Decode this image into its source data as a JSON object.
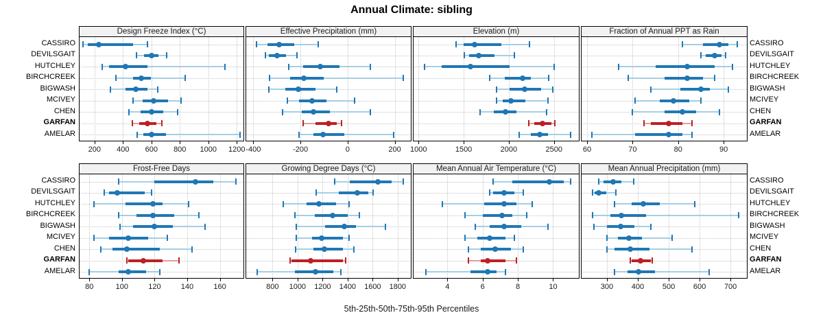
{
  "title": "Annual Climate: sibling",
  "caption": "5th-25th-50th-75th-95th Percentiles",
  "sites": [
    "CASSIRO",
    "DEVILSGAIT",
    "HUTCHLEY",
    "BIRCHCREEK",
    "BIGWASH",
    "MCIVEY",
    "CHEN",
    "GARFAN",
    "AMELAR"
  ],
  "highlight_site": "GARFAN",
  "colors": {
    "blue": "#1f77b4",
    "blue_light": "#a6cee3",
    "red": "#bc2025",
    "red_light": "#dca0a0",
    "grid": "#c4c4c4",
    "strip_bg": "#f2f2f2",
    "border": "#000000"
  },
  "chart_data": [
    {
      "type": "dotplot",
      "title": "Design Freeze Index (°C)",
      "panel_row": "top",
      "percentiles": [
        "5th",
        "25th",
        "50th",
        "75th",
        "95th"
      ],
      "xlim": [
        95,
        1247
      ],
      "xticks": [
        200,
        400,
        600,
        800,
        1000,
        1200
      ],
      "grid": true,
      "series": [
        {
          "name": "CASSIRO",
          "values": [
            120,
            155,
            230,
            470,
            570
          ]
        },
        {
          "name": "DEVILSGAIT",
          "values": [
            495,
            550,
            600,
            650,
            705
          ]
        },
        {
          "name": "HUTCHLEY",
          "values": [
            255,
            300,
            420,
            570,
            1115
          ]
        },
        {
          "name": "BIRCHCREEK",
          "values": [
            350,
            470,
            530,
            595,
            835
          ]
        },
        {
          "name": "BIGWASH",
          "values": [
            310,
            420,
            490,
            570,
            645
          ]
        },
        {
          "name": "MCIVEY",
          "values": [
            470,
            540,
            615,
            715,
            810
          ]
        },
        {
          "name": "CHEN",
          "values": [
            440,
            525,
            600,
            685,
            785
          ]
        },
        {
          "name": "GARFAN",
          "values": [
            465,
            515,
            570,
            635,
            675
          ]
        },
        {
          "name": "AMELAR",
          "values": [
            500,
            545,
            600,
            700,
            1225
          ]
        }
      ]
    },
    {
      "type": "dotplot",
      "title": "Effective Precipitation (mm)",
      "panel_row": "top",
      "percentiles": [
        "5th",
        "25th",
        "50th",
        "75th",
        "95th"
      ],
      "xlim": [
        -430,
        268
      ],
      "xticks": [
        -400,
        -200,
        0,
        200
      ],
      "grid": true,
      "series": [
        {
          "name": "CASSIRO",
          "values": [
            -385,
            -340,
            -290,
            -225,
            -125
          ]
        },
        {
          "name": "DEVILSGAIT",
          "values": [
            -350,
            -335,
            -300,
            -260,
            -215
          ]
        },
        {
          "name": "HUTCHLEY",
          "values": [
            -250,
            -190,
            -115,
            -35,
            95
          ]
        },
        {
          "name": "BIRCHCREEK",
          "values": [
            -330,
            -245,
            -185,
            -100,
            235
          ]
        },
        {
          "name": "BIGWASH",
          "values": [
            -335,
            -265,
            -210,
            -135,
            -45
          ]
        },
        {
          "name": "MCIVEY",
          "values": [
            -255,
            -205,
            -150,
            -90,
            30
          ]
        },
        {
          "name": "CHEN",
          "values": [
            -275,
            -195,
            -145,
            -75,
            95
          ]
        },
        {
          "name": "GARFAN",
          "values": [
            -190,
            -135,
            -80,
            -45,
            -25
          ]
        },
        {
          "name": "AMELAR",
          "values": [
            -205,
            -145,
            -105,
            -15,
            195
          ]
        }
      ]
    },
    {
      "type": "dotplot",
      "title": "Elevation (m)",
      "panel_row": "top",
      "percentiles": [
        "5th",
        "25th",
        "50th",
        "75th",
        "95th"
      ],
      "xlim": [
        945,
        2775
      ],
      "xticks": [
        1000,
        1500,
        2000,
        2500
      ],
      "grid": true,
      "series": [
        {
          "name": "CASSIRO",
          "values": [
            1415,
            1500,
            1620,
            1920,
            2225
          ]
        },
        {
          "name": "DEVILSGAIT",
          "values": [
            1510,
            1560,
            1670,
            1840,
            2065
          ]
        },
        {
          "name": "HUTCHLEY",
          "values": [
            1070,
            1255,
            1575,
            2010,
            2500
          ]
        },
        {
          "name": "BIRCHCREEK",
          "values": [
            1785,
            1955,
            2155,
            2245,
            2440
          ]
        },
        {
          "name": "BIGWASH",
          "values": [
            1865,
            2005,
            2175,
            2360,
            2485
          ]
        },
        {
          "name": "MCIVEY",
          "values": [
            1865,
            1935,
            2025,
            2185,
            2435
          ]
        },
        {
          "name": "CHEN",
          "values": [
            1680,
            1835,
            1960,
            2085,
            2420
          ]
        },
        {
          "name": "GARFAN",
          "values": [
            2220,
            2285,
            2375,
            2475,
            2510
          ]
        },
        {
          "name": "AMELAR",
          "values": [
            2115,
            2245,
            2345,
            2435,
            2685
          ]
        }
      ]
    },
    {
      "type": "dotplot",
      "title": "Fraction of Annual PPT as Rain",
      "panel_row": "top",
      "percentiles": [
        "5th",
        "25th",
        "50th",
        "75th",
        "95th"
      ],
      "xlim": [
        58.8,
        95.1
      ],
      "xticks": [
        60,
        70,
        80,
        90
      ],
      "grid": true,
      "series": [
        {
          "name": "CASSIRO",
          "values": [
            81,
            85.5,
            89,
            91,
            93
          ]
        },
        {
          "name": "DEVILSGAIT",
          "values": [
            85,
            86,
            88,
            89.5,
            90.5
          ]
        },
        {
          "name": "HUTCHLEY",
          "values": [
            67,
            75,
            82,
            88,
            92
          ]
        },
        {
          "name": "BIRCHCREEK",
          "values": [
            69,
            77,
            82,
            85.5,
            88
          ]
        },
        {
          "name": "BIGWASH",
          "values": [
            74,
            80.5,
            85,
            87,
            91
          ]
        },
        {
          "name": "MCIVEY",
          "values": [
            70.5,
            76,
            79,
            82.5,
            85
          ]
        },
        {
          "name": "CHEN",
          "values": [
            70,
            77,
            81,
            84,
            89
          ]
        },
        {
          "name": "GARFAN",
          "values": [
            72.5,
            74,
            78,
            81,
            83
          ]
        },
        {
          "name": "AMELAR",
          "values": [
            61,
            70.5,
            78,
            81,
            83
          ]
        }
      ]
    },
    {
      "type": "dotplot",
      "title": "Frost-Free Days",
      "panel_row": "bottom",
      "percentiles": [
        "5th",
        "25th",
        "50th",
        "75th",
        "95th"
      ],
      "xlim": [
        74,
        174.5
      ],
      "xticks": [
        80,
        100,
        120,
        140,
        160
      ],
      "grid": true,
      "series": [
        {
          "name": "CASSIRO",
          "values": [
            98,
            120,
            145,
            156,
            170
          ]
        },
        {
          "name": "DEVILSGAIT",
          "values": [
            89,
            92,
            97,
            114,
            118
          ]
        },
        {
          "name": "HUTCHLEY",
          "values": [
            83,
            102,
            119,
            125,
            141
          ]
        },
        {
          "name": "BIRCHCREEK",
          "values": [
            98,
            109,
            119,
            132,
            147
          ]
        },
        {
          "name": "BIGWASH",
          "values": [
            99,
            107,
            120,
            131,
            151
          ]
        },
        {
          "name": "MCIVEY",
          "values": [
            83,
            92,
            104,
            116,
            128
          ]
        },
        {
          "name": "CHEN",
          "values": [
            87,
            94,
            103,
            123,
            143
          ]
        },
        {
          "name": "GARFAN",
          "values": [
            103,
            104,
            113,
            125,
            135
          ]
        },
        {
          "name": "AMELAR",
          "values": [
            80,
            98,
            104,
            115,
            123
          ]
        }
      ]
    },
    {
      "type": "dotplot",
      "title": "Growing Degree Days (°C)",
      "panel_row": "bottom",
      "percentiles": [
        "5th",
        "25th",
        "50th",
        "75th",
        "95th"
      ],
      "xlim": [
        590,
        1905
      ],
      "xticks": [
        800,
        1000,
        1200,
        1400,
        1600,
        1800
      ],
      "grid": true,
      "series": [
        {
          "name": "CASSIRO",
          "values": [
            1295,
            1420,
            1640,
            1750,
            1845
          ]
        },
        {
          "name": "DEVILSGAIT",
          "values": [
            1150,
            1330,
            1475,
            1565,
            1605
          ]
        },
        {
          "name": "HUTCHLEY",
          "values": [
            885,
            1070,
            1170,
            1310,
            1410
          ]
        },
        {
          "name": "BIRCHCREEK",
          "values": [
            980,
            1140,
            1280,
            1400,
            1495
          ]
        },
        {
          "name": "BIGWASH",
          "values": [
            990,
            1220,
            1375,
            1465,
            1700
          ]
        },
        {
          "name": "MCIVEY",
          "values": [
            990,
            1115,
            1195,
            1360,
            1410
          ]
        },
        {
          "name": "CHEN",
          "values": [
            985,
            1125,
            1215,
            1365,
            1450
          ]
        },
        {
          "name": "GARFAN",
          "values": [
            940,
            950,
            1105,
            1360,
            1385
          ]
        },
        {
          "name": "AMELAR",
          "values": [
            680,
            980,
            1145,
            1285,
            1345
          ]
        }
      ]
    },
    {
      "type": "dotplot",
      "title": "Mean Annual Air Temperature (°C)",
      "panel_row": "bottom",
      "percentiles": [
        "5th",
        "25th",
        "50th",
        "75th",
        "95th"
      ],
      "xlim": [
        2.08,
        11.46
      ],
      "xticks": [
        4,
        6,
        8,
        10
      ],
      "grid": true,
      "series": [
        {
          "name": "CASSIRO",
          "values": [
            6.6,
            7.7,
            9.8,
            10.6,
            11.0
          ]
        },
        {
          "name": "DEVILSGAIT",
          "values": [
            6.4,
            6.6,
            7.2,
            7.8,
            8.3
          ]
        },
        {
          "name": "HUTCHLEY",
          "values": [
            3.7,
            6.1,
            7.2,
            7.9,
            8.8
          ]
        },
        {
          "name": "BIRCHCREEK",
          "values": [
            5.0,
            6.0,
            7.1,
            7.7,
            8.5
          ]
        },
        {
          "name": "BIGWASH",
          "values": [
            5.6,
            6.4,
            7.2,
            8.2,
            9.7
          ]
        },
        {
          "name": "MCIVEY",
          "values": [
            5.0,
            5.7,
            6.4,
            7.3,
            7.8
          ]
        },
        {
          "name": "CHEN",
          "values": [
            5.2,
            5.9,
            6.7,
            7.6,
            8.3
          ]
        },
        {
          "name": "GARFAN",
          "values": [
            5.2,
            5.9,
            6.3,
            7.3,
            7.9
          ]
        },
        {
          "name": "AMELAR",
          "values": [
            2.8,
            5.3,
            6.3,
            6.8,
            7.3
          ]
        }
      ]
    },
    {
      "type": "dotplot",
      "title": "Mean Annual Precipitation (mm)",
      "panel_row": "bottom",
      "percentiles": [
        "5th",
        "25th",
        "50th",
        "75th",
        "95th"
      ],
      "xlim": [
        218,
        753
      ],
      "xticks": [
        300,
        400,
        500,
        600,
        700
      ],
      "grid": true,
      "series": [
        {
          "name": "CASSIRO",
          "values": [
            274,
            290,
            321,
            346,
            386
          ]
        },
        {
          "name": "DEVILSGAIT",
          "values": [
            254,
            261,
            274,
            299,
            329
          ]
        },
        {
          "name": "HUTCHLEY",
          "values": [
            324,
            381,
            417,
            470,
            585
          ]
        },
        {
          "name": "BIRCHCREEK",
          "values": [
            254,
            312,
            347,
            426,
            727
          ]
        },
        {
          "name": "BIGWASH",
          "values": [
            259,
            301,
            344,
            390,
            443
          ]
        },
        {
          "name": "MCIVEY",
          "values": [
            300,
            335,
            371,
            413,
            511
          ]
        },
        {
          "name": "CHEN",
          "values": [
            300,
            325,
            375,
            437,
            575
          ]
        },
        {
          "name": "GARFAN",
          "values": [
            376,
            381,
            410,
            443,
            447
          ]
        },
        {
          "name": "AMELAR",
          "values": [
            325,
            366,
            403,
            456,
            632
          ]
        }
      ]
    }
  ]
}
